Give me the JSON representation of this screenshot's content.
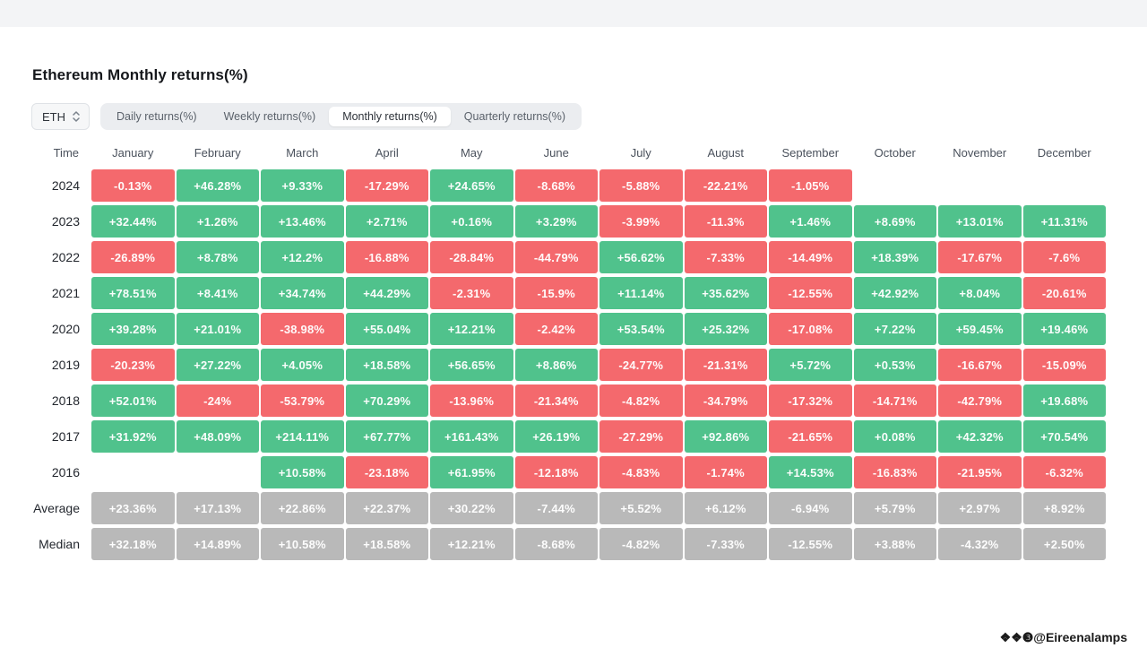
{
  "page": {
    "title": "Ethereum Monthly returns(%)",
    "watermark": "❖❖❸@Eireenalamps"
  },
  "controls": {
    "symbol_select": {
      "value": "ETH"
    },
    "tabs": [
      {
        "label": "Daily returns(%)",
        "active": false
      },
      {
        "label": "Weekly returns(%)",
        "active": false
      },
      {
        "label": "Monthly returns(%)",
        "active": true
      },
      {
        "label": "Quarterly returns(%)",
        "active": false
      }
    ]
  },
  "colors": {
    "positive": "#50c28c",
    "negative": "#f4696d",
    "neutral": "#b9b9b9"
  },
  "chart_data": {
    "type": "heatmap",
    "title": "Ethereum Monthly returns(%)",
    "row_header": "Time",
    "columns": [
      "January",
      "February",
      "March",
      "April",
      "May",
      "June",
      "July",
      "August",
      "September",
      "October",
      "November",
      "December"
    ],
    "rows": [
      {
        "label": "2024",
        "kind": "year",
        "display": [
          "-0.13%",
          "+46.28%",
          "+9.33%",
          "-17.29%",
          "+24.65%",
          "-8.68%",
          "-5.88%",
          "-22.21%",
          "-1.05%",
          "",
          "",
          ""
        ],
        "values": [
          -0.13,
          46.28,
          9.33,
          -17.29,
          24.65,
          -8.68,
          -5.88,
          -22.21,
          -1.05,
          null,
          null,
          null
        ]
      },
      {
        "label": "2023",
        "kind": "year",
        "display": [
          "+32.44%",
          "+1.26%",
          "+13.46%",
          "+2.71%",
          "+0.16%",
          "+3.29%",
          "-3.99%",
          "-11.3%",
          "+1.46%",
          "+8.69%",
          "+13.01%",
          "+11.31%"
        ],
        "values": [
          32.44,
          1.26,
          13.46,
          2.71,
          0.16,
          3.29,
          -3.99,
          -11.3,
          1.46,
          8.69,
          13.01,
          11.31
        ]
      },
      {
        "label": "2022",
        "kind": "year",
        "display": [
          "-26.89%",
          "+8.78%",
          "+12.2%",
          "-16.88%",
          "-28.84%",
          "-44.79%",
          "+56.62%",
          "-7.33%",
          "-14.49%",
          "+18.39%",
          "-17.67%",
          "-7.6%"
        ],
        "values": [
          -26.89,
          8.78,
          12.2,
          -16.88,
          -28.84,
          -44.79,
          56.62,
          -7.33,
          -14.49,
          18.39,
          -17.67,
          -7.6
        ]
      },
      {
        "label": "2021",
        "kind": "year",
        "display": [
          "+78.51%",
          "+8.41%",
          "+34.74%",
          "+44.29%",
          "-2.31%",
          "-15.9%",
          "+11.14%",
          "+35.62%",
          "-12.55%",
          "+42.92%",
          "+8.04%",
          "-20.61%"
        ],
        "values": [
          78.51,
          8.41,
          34.74,
          44.29,
          -2.31,
          -15.9,
          11.14,
          35.62,
          -12.55,
          42.92,
          8.04,
          -20.61
        ]
      },
      {
        "label": "2020",
        "kind": "year",
        "display": [
          "+39.28%",
          "+21.01%",
          "-38.98%",
          "+55.04%",
          "+12.21%",
          "-2.42%",
          "+53.54%",
          "+25.32%",
          "-17.08%",
          "+7.22%",
          "+59.45%",
          "+19.46%"
        ],
        "values": [
          39.28,
          21.01,
          -38.98,
          55.04,
          12.21,
          -2.42,
          53.54,
          25.32,
          -17.08,
          7.22,
          59.45,
          19.46
        ]
      },
      {
        "label": "2019",
        "kind": "year",
        "display": [
          "-20.23%",
          "+27.22%",
          "+4.05%",
          "+18.58%",
          "+56.65%",
          "+8.86%",
          "-24.77%",
          "-21.31%",
          "+5.72%",
          "+0.53%",
          "-16.67%",
          "-15.09%"
        ],
        "values": [
          -20.23,
          27.22,
          4.05,
          18.58,
          56.65,
          8.86,
          -24.77,
          -21.31,
          5.72,
          0.53,
          -16.67,
          -15.09
        ]
      },
      {
        "label": "2018",
        "kind": "year",
        "display": [
          "+52.01%",
          "-24%",
          "-53.79%",
          "+70.29%",
          "-13.96%",
          "-21.34%",
          "-4.82%",
          "-34.79%",
          "-17.32%",
          "-14.71%",
          "-42.79%",
          "+19.68%"
        ],
        "values": [
          52.01,
          -24,
          -53.79,
          70.29,
          -13.96,
          -21.34,
          -4.82,
          -34.79,
          -17.32,
          -14.71,
          -42.79,
          19.68
        ]
      },
      {
        "label": "2017",
        "kind": "year",
        "display": [
          "+31.92%",
          "+48.09%",
          "+214.11%",
          "+67.77%",
          "+161.43%",
          "+26.19%",
          "-27.29%",
          "+92.86%",
          "-21.65%",
          "+0.08%",
          "+42.32%",
          "+70.54%"
        ],
        "values": [
          31.92,
          48.09,
          214.11,
          67.77,
          161.43,
          26.19,
          -27.29,
          92.86,
          -21.65,
          0.08,
          42.32,
          70.54
        ]
      },
      {
        "label": "2016",
        "kind": "year",
        "display": [
          "",
          "",
          "+10.58%",
          "-23.18%",
          "+61.95%",
          "-12.18%",
          "-4.83%",
          "-1.74%",
          "+14.53%",
          "-16.83%",
          "-21.95%",
          "-6.32%"
        ],
        "values": [
          null,
          null,
          10.58,
          -23.18,
          61.95,
          -12.18,
          -4.83,
          -1.74,
          14.53,
          -16.83,
          -21.95,
          -6.32
        ]
      },
      {
        "label": "Average",
        "kind": "aggregate",
        "display": [
          "+23.36%",
          "+17.13%",
          "+22.86%",
          "+22.37%",
          "+30.22%",
          "-7.44%",
          "+5.52%",
          "+6.12%",
          "-6.94%",
          "+5.79%",
          "+2.97%",
          "+8.92%"
        ],
        "values": [
          23.36,
          17.13,
          22.86,
          22.37,
          30.22,
          -7.44,
          5.52,
          6.12,
          -6.94,
          5.79,
          2.97,
          8.92
        ]
      },
      {
        "label": "Median",
        "kind": "aggregate",
        "display": [
          "+32.18%",
          "+14.89%",
          "+10.58%",
          "+18.58%",
          "+12.21%",
          "-8.68%",
          "-4.82%",
          "-7.33%",
          "-12.55%",
          "+3.88%",
          "-4.32%",
          "+2.50%"
        ],
        "values": [
          32.18,
          14.89,
          10.58,
          18.58,
          12.21,
          -8.68,
          -4.82,
          -7.33,
          -12.55,
          3.88,
          -4.32,
          2.5
        ]
      }
    ]
  }
}
